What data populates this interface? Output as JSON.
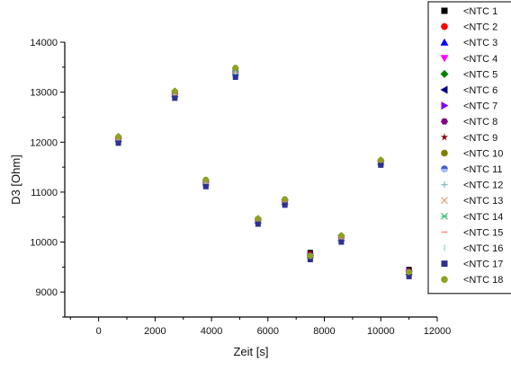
{
  "chart_data": {
    "type": "scatter",
    "xlabel": "Zeit [s]",
    "ylabel": "D3 [Ohm]",
    "xlim": [
      -1200,
      12000
    ],
    "ylim": [
      8500,
      14000
    ],
    "xticks": [
      0,
      2000,
      4000,
      6000,
      8000,
      10000,
      12000
    ],
    "xtick_labels": [
      "0",
      "2000",
      "4000",
      "6000",
      "8000",
      "10000",
      "12000"
    ],
    "yticks": [
      9000,
      10000,
      11000,
      12000,
      13000,
      14000
    ],
    "ytick_labels": [
      "9000",
      "10000",
      "11000",
      "12000",
      "13000",
      "14000"
    ],
    "grid": false,
    "legend_position": "top-right",
    "x": [
      700,
      2700,
      3800,
      4850,
      5650,
      6600,
      7500,
      8600,
      10000,
      11000
    ],
    "series": [
      {
        "name": "<NTC 1",
        "color": "#000000",
        "marker": "square",
        "values": [
          12050,
          12950,
          11180,
          13380,
          10430,
          10800,
          9790,
          10100,
          11600,
          9450
        ]
      },
      {
        "name": "<NTC 2",
        "color": "#ff0000",
        "marker": "circle",
        "values": [
          12070,
          12970,
          11200,
          13420,
          10440,
          10810,
          9760,
          10090,
          11610,
          9420
        ]
      },
      {
        "name": "<NTC 3",
        "color": "#0000ff",
        "marker": "triangle-up",
        "values": [
          12060,
          12960,
          11190,
          13400,
          10430,
          10800,
          9740,
          10080,
          11600,
          9400
        ]
      },
      {
        "name": "<NTC 4",
        "color": "#ff00ff",
        "marker": "triangle-down",
        "values": [
          12040,
          12940,
          11170,
          13380,
          10410,
          10790,
          9730,
          10070,
          11590,
          9390
        ]
      },
      {
        "name": "<NTC 5",
        "color": "#008000",
        "marker": "diamond",
        "values": [
          12110,
          13020,
          11240,
          13480,
          10470,
          10850,
          9730,
          10130,
          11640,
          9400
        ]
      },
      {
        "name": "<NTC 6",
        "color": "#000080",
        "marker": "triangle-left",
        "values": [
          12050,
          12950,
          11180,
          13390,
          10420,
          10800,
          9740,
          10080,
          11600,
          9400
        ]
      },
      {
        "name": "<NTC 7",
        "color": "#8000ff",
        "marker": "triangle-right",
        "values": [
          12060,
          12960,
          11190,
          13400,
          10430,
          10800,
          9740,
          10080,
          11600,
          9410
        ]
      },
      {
        "name": "<NTC 8",
        "color": "#800080",
        "marker": "hexagon",
        "values": [
          12050,
          12950,
          11180,
          13390,
          10420,
          10800,
          9740,
          10080,
          11600,
          9400
        ]
      },
      {
        "name": "<NTC 9",
        "color": "#800000",
        "marker": "star",
        "values": [
          12060,
          12960,
          11190,
          13400,
          10430,
          10800,
          9750,
          10090,
          11600,
          9410
        ]
      },
      {
        "name": "<NTC 10",
        "color": "#808000",
        "marker": "circle",
        "values": [
          12100,
          13010,
          11230,
          13470,
          10460,
          10840,
          9730,
          10120,
          11630,
          9400
        ]
      },
      {
        "name": "<NTC 11",
        "color": "#4060c0",
        "marker": "half-circle",
        "values": [
          12000,
          12900,
          11130,
          13330,
          10380,
          10760,
          9680,
          10030,
          11560,
          9340
        ]
      },
      {
        "name": "<NTC 12",
        "color": "#80c0c0",
        "marker": "plus",
        "values": [
          12030,
          12930,
          11160,
          13370,
          10400,
          10780,
          9700,
          10050,
          11580,
          9360
        ]
      },
      {
        "name": "<NTC 13",
        "color": "#e0a080",
        "marker": "cross",
        "values": [
          12040,
          12940,
          11170,
          13380,
          10410,
          10790,
          9710,
          10060,
          11590,
          9370
        ]
      },
      {
        "name": "<NTC 14",
        "color": "#40c080",
        "marker": "asterisk",
        "values": [
          12040,
          12940,
          11170,
          13380,
          10410,
          10790,
          9710,
          10060,
          11590,
          9370
        ]
      },
      {
        "name": "<NTC 15",
        "color": "#ff8080",
        "marker": "dash",
        "values": [
          12050,
          12950,
          11180,
          13390,
          10420,
          10800,
          9720,
          10070,
          11600,
          9380
        ]
      },
      {
        "name": "<NTC 16",
        "color": "#80e0e0",
        "marker": "vbar",
        "values": [
          12050,
          12950,
          11180,
          13390,
          10420,
          10800,
          9720,
          10070,
          11600,
          9380
        ]
      },
      {
        "name": "<NTC 17",
        "color": "#303090",
        "marker": "square",
        "values": [
          11980,
          12880,
          11110,
          13300,
          10360,
          10740,
          9650,
          10000,
          11540,
          9310
        ]
      },
      {
        "name": "<NTC 18",
        "color": "#90a020",
        "marker": "circle",
        "values": [
          12110,
          13020,
          11250,
          13490,
          10470,
          10860,
          9720,
          10130,
          11640,
          9400
        ]
      }
    ]
  }
}
